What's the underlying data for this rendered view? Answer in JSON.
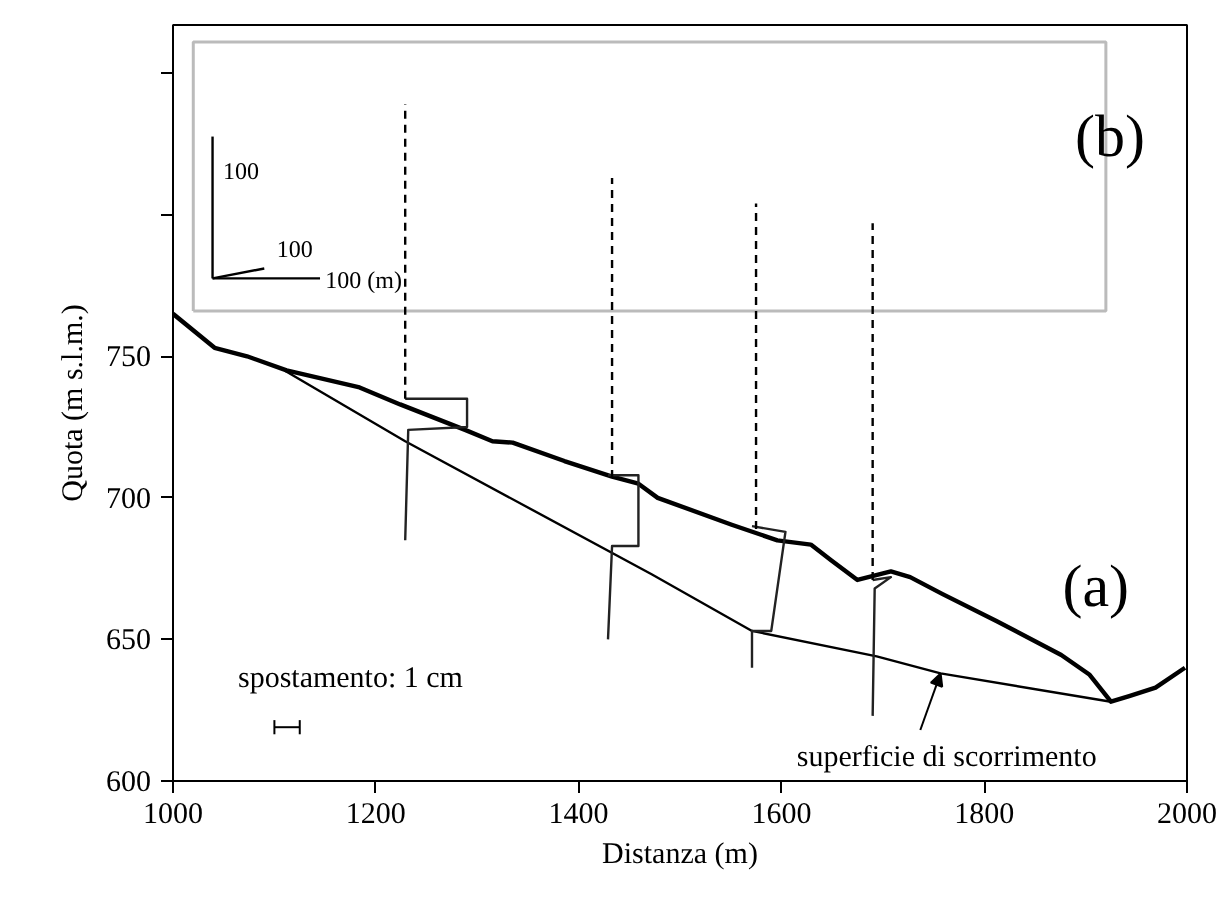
{
  "chart_data": {
    "type": "line",
    "xlabel": "Distanza (m)",
    "ylabel": "Quota (m s.l.m.)",
    "xlim": [
      1000,
      2000
    ],
    "xticks": [
      1000,
      1200,
      1400,
      1600,
      1800,
      2000
    ],
    "ylim": [
      600,
      867
    ],
    "yticks": [
      600,
      650,
      700,
      750,
      {
        "value": 800,
        "label": null
      },
      {
        "value": 850,
        "label": null
      }
    ],
    "grid": false,
    "series": [
      {
        "color": "#000000",
        "x": [
          1000,
          1041,
          1073,
          1112,
          1184,
          1224,
          1288,
          1315,
          1335,
          1386,
          1433,
          1459,
          1478,
          1551,
          1596,
          1629,
          1649,
          1675,
          1708,
          1727,
          1759,
          1812,
          1876,
          1904,
          1925,
          1943,
          1969,
          1998
        ],
        "values": [
          765,
          753,
          750,
          745,
          739,
          733,
          724,
          720,
          719.5,
          713,
          707.5,
          705,
          700,
          690.5,
          685,
          683.5,
          678,
          671,
          674,
          672,
          666,
          656.5,
          644.5,
          637.5,
          628,
          630,
          633,
          640
        ]
      },
      {
        "color": "#000000",
        "x": [
          1110,
          1229,
          1472,
          1571,
          1694,
          1757,
          1925
        ],
        "values": [
          745,
          720,
          673,
          653,
          644,
          638,
          628
        ]
      },
      {
        "color": "#222222",
        "x": [
          1229,
          1290,
          1290,
          1232,
          1229
        ],
        "values": [
          735,
          735,
          725,
          724,
          685
        ]
      },
      {
        "color": "#222222",
        "x": [
          1429,
          1459,
          1459,
          1433,
          1429
        ],
        "values": [
          708,
          708,
          683,
          683,
          650
        ]
      },
      {
        "color": "#222222",
        "x": [
          1571,
          1604,
          1590,
          1571,
          1571
        ],
        "values": [
          690,
          688,
          653,
          653,
          640
        ]
      },
      {
        "color": "#222222",
        "x": [
          1690,
          1708,
          1692,
          1690
        ],
        "values": [
          671,
          672,
          668,
          623
        ]
      },
      {
        "color": "#000000",
        "line_style": "dashed",
        "x": [
          1229,
          1229
        ],
        "values": [
          735,
          839
        ]
      },
      {
        "color": "#000000",
        "line_style": "dashed",
        "x": [
          1433,
          1433
        ],
        "values": [
          707,
          813
        ]
      },
      {
        "color": "#000000",
        "line_style": "dashed",
        "x": [
          1575,
          1575
        ],
        "values": [
          689,
          804
        ]
      },
      {
        "color": "#000000",
        "line_style": "dashed",
        "x": [
          1690,
          1690
        ],
        "values": [
          671,
          797
        ]
      }
    ],
    "annotations": [
      "(a)",
      "(b)",
      "spostamento: 1 cm",
      "100",
      "100",
      "100 (m)",
      {
        "text": "superficie di scorrimento",
        "x": 1757,
        "y": 638
      }
    ]
  }
}
